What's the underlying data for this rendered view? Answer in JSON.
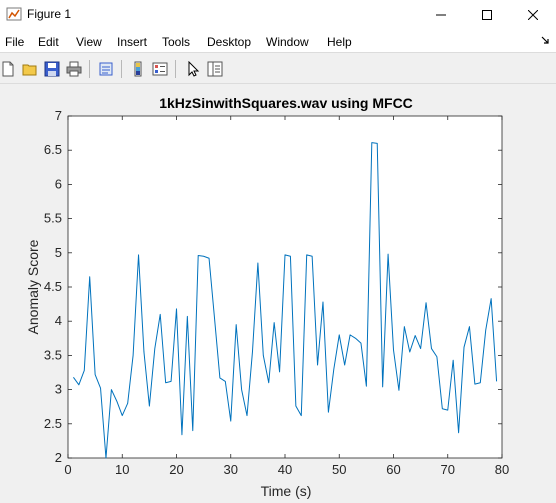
{
  "window": {
    "title": "Figure 1",
    "controls": {
      "minimize": "minimize",
      "maximize": "maximize",
      "close": "close"
    }
  },
  "menu": {
    "items": [
      "File",
      "Edit",
      "View",
      "Insert",
      "Tools",
      "Desktop",
      "Window",
      "Help"
    ]
  },
  "toolbar": {
    "buttons": [
      "new-figure",
      "open-file",
      "save",
      "print",
      "print-preview",
      "colorbar",
      "legend",
      "pointer",
      "property-editor"
    ]
  },
  "colors": {
    "line": "#0072bd",
    "axes_bg": "#ffffff",
    "figure_bg": "#f0f0f0"
  },
  "chart_data": {
    "type": "line",
    "title": "1kHzSinwithSquares.wav using MFCC",
    "xlabel": "Time (s)",
    "ylabel": "Anomaly Score",
    "xlim": [
      0,
      80
    ],
    "ylim": [
      2,
      7
    ],
    "xticks": [
      0,
      10,
      20,
      30,
      40,
      50,
      60,
      70,
      80
    ],
    "yticks": [
      2,
      2.5,
      3,
      3.5,
      4,
      4.5,
      5,
      5.5,
      6,
      6.5,
      7
    ],
    "ytick_labels": [
      "2",
      "2.5",
      "3",
      "3.5",
      "4",
      "4.5",
      "5",
      "5.5",
      "6",
      "6.5",
      "7"
    ],
    "grid": false,
    "series": [
      {
        "x": [
          1,
          2,
          3,
          4,
          5,
          6,
          7,
          8,
          9,
          10,
          11,
          12,
          13,
          14,
          15,
          16,
          17,
          18,
          19,
          20,
          21,
          22,
          23,
          24,
          25,
          26,
          27,
          28,
          29,
          30,
          31,
          32,
          33,
          34,
          35,
          36,
          37,
          38,
          39,
          40,
          41,
          42,
          43,
          44,
          45,
          46,
          47,
          48,
          49,
          50,
          51,
          52,
          53,
          54,
          55,
          56,
          57,
          58,
          59,
          60,
          61,
          62,
          63,
          64,
          65,
          66,
          67,
          68,
          69,
          70,
          71,
          72,
          73,
          74,
          75,
          76,
          77,
          78,
          79
        ],
        "y": [
          3.18,
          3.07,
          3.28,
          4.65,
          3.22,
          3.02,
          2.0,
          3.0,
          2.83,
          2.62,
          2.8,
          3.5,
          4.97,
          3.55,
          2.76,
          3.6,
          4.1,
          3.1,
          3.12,
          4.18,
          2.34,
          4.07,
          2.4,
          4.96,
          4.95,
          4.92,
          4.05,
          3.17,
          3.12,
          2.54,
          3.95,
          3.0,
          2.62,
          3.55,
          4.85,
          3.5,
          3.1,
          3.98,
          3.26,
          4.97,
          4.95,
          2.76,
          2.62,
          4.97,
          4.95,
          3.36,
          4.28,
          2.67,
          3.3,
          3.8,
          3.36,
          3.8,
          3.75,
          3.68,
          3.05,
          6.61,
          6.6,
          3.04,
          4.98,
          3.58,
          2.99,
          3.92,
          3.55,
          3.79,
          3.6,
          4.27,
          3.6,
          3.48,
          2.72,
          2.7,
          3.43,
          2.37,
          3.62,
          3.92,
          3.08,
          3.1,
          3.87,
          4.33,
          3.12
        ]
      }
    ]
  }
}
